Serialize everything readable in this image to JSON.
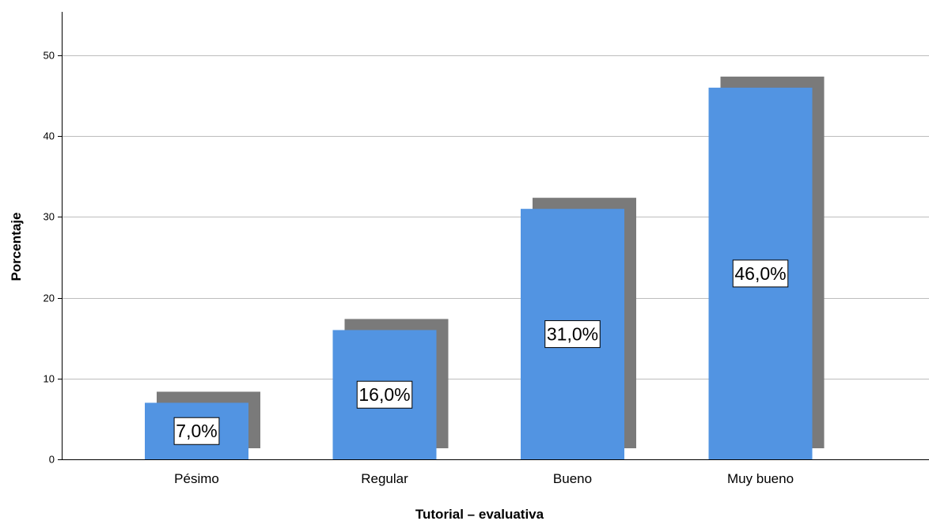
{
  "chart_data": {
    "type": "bar",
    "categories": [
      "Pésimo",
      "Regular",
      "Bueno",
      "Muy bueno"
    ],
    "values": [
      7.0,
      16.0,
      31.0,
      46.0
    ],
    "data_labels": [
      "7,0%",
      "16,0%",
      "31,0%",
      "46,0%"
    ],
    "title": "",
    "xlabel": "Tutorial – evaluativa",
    "ylabel": "Porcentaje",
    "ylim": [
      0,
      55
    ],
    "yticks": [
      0,
      10,
      20,
      30,
      40,
      50
    ],
    "grid": true,
    "bar_style": "3d-shadow",
    "colors": {
      "bar": "#5294E2",
      "shadow": "#7A7A7A",
      "grid": "#BDBDBD",
      "axis": "#000000"
    }
  }
}
